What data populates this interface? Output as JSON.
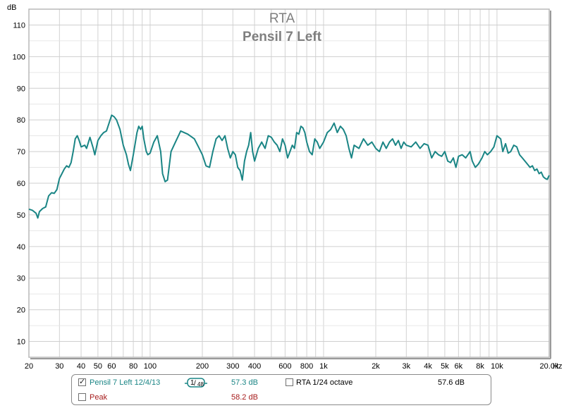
{
  "chart_data": {
    "type": "line",
    "title": "RTA",
    "subtitle": "Pensil 7 Left",
    "ylabel": "dB",
    "xlabel": "",
    "x_unit": "Hz",
    "x_scale": "log",
    "xlim": [
      20,
      20000
    ],
    "ylim": [
      5,
      115
    ],
    "grid": true,
    "y_ticks": [
      10,
      20,
      30,
      40,
      50,
      60,
      70,
      80,
      90,
      100,
      110
    ],
    "x_ticks": [
      {
        "value": 20,
        "label": "20"
      },
      {
        "value": 30,
        "label": "30"
      },
      {
        "value": 40,
        "label": "40"
      },
      {
        "value": 50,
        "label": "50"
      },
      {
        "value": 60,
        "label": "60"
      },
      {
        "value": 80,
        "label": "80"
      },
      {
        "value": 100,
        "label": "100"
      },
      {
        "value": 200,
        "label": "200"
      },
      {
        "value": 300,
        "label": "300"
      },
      {
        "value": 400,
        "label": "400"
      },
      {
        "value": 600,
        "label": "600"
      },
      {
        "value": 800,
        "label": "800"
      },
      {
        "value": 1000,
        "label": "1k"
      },
      {
        "value": 2000,
        "label": "2k"
      },
      {
        "value": 3000,
        "label": "3k"
      },
      {
        "value": 4000,
        "label": "4k"
      },
      {
        "value": 5000,
        "label": "5k"
      },
      {
        "value": 6000,
        "label": "6k"
      },
      {
        "value": 8000,
        "label": "8k"
      },
      {
        "value": 10000,
        "label": "10k"
      },
      {
        "value": 20000,
        "label": "20.0k"
      }
    ],
    "series": [
      {
        "name": "Pensil 7 Left 12/4/13",
        "color": "#1a8585",
        "points": [
          [
            20,
            51.8
          ],
          [
            21,
            51.4
          ],
          [
            22,
            50.5
          ],
          [
            22.5,
            49
          ],
          [
            23,
            51
          ],
          [
            24,
            52
          ],
          [
            25,
            52.5
          ],
          [
            26,
            56
          ],
          [
            27,
            57
          ],
          [
            28,
            56.8
          ],
          [
            29,
            58
          ],
          [
            30,
            61.5
          ],
          [
            31,
            63
          ],
          [
            32,
            64.5
          ],
          [
            33,
            65.5
          ],
          [
            34,
            65
          ],
          [
            35,
            66.5
          ],
          [
            36,
            70
          ],
          [
            37,
            74
          ],
          [
            38,
            75
          ],
          [
            39,
            73.5
          ],
          [
            40,
            71.5
          ],
          [
            42,
            72
          ],
          [
            43,
            71
          ],
          [
            45,
            74.5
          ],
          [
            47,
            71
          ],
          [
            48,
            69
          ],
          [
            50,
            73.5
          ],
          [
            52,
            75
          ],
          [
            54,
            76
          ],
          [
            56,
            76.5
          ],
          [
            58,
            79
          ],
          [
            60,
            81.5
          ],
          [
            62,
            81
          ],
          [
            64,
            80
          ],
          [
            67,
            77
          ],
          [
            70,
            72
          ],
          [
            73,
            69
          ],
          [
            75,
            66
          ],
          [
            77,
            64
          ],
          [
            80,
            69
          ],
          [
            84,
            76
          ],
          [
            86,
            78
          ],
          [
            88,
            77
          ],
          [
            90,
            78
          ],
          [
            92,
            74
          ],
          [
            95,
            70
          ],
          [
            97,
            69
          ],
          [
            100,
            69.5
          ],
          [
            105,
            73
          ],
          [
            110,
            75
          ],
          [
            115,
            70
          ],
          [
            118,
            63
          ],
          [
            122,
            60.5
          ],
          [
            126,
            61
          ],
          [
            132,
            70
          ],
          [
            140,
            73
          ],
          [
            150,
            76.5
          ],
          [
            165,
            75.5
          ],
          [
            180,
            74
          ],
          [
            190,
            71.5
          ],
          [
            200,
            69
          ],
          [
            210,
            65.5
          ],
          [
            220,
            65
          ],
          [
            230,
            70
          ],
          [
            240,
            74
          ],
          [
            250,
            75
          ],
          [
            260,
            73.5
          ],
          [
            270,
            75
          ],
          [
            280,
            71
          ],
          [
            290,
            68
          ],
          [
            300,
            70
          ],
          [
            310,
            69
          ],
          [
            320,
            65
          ],
          [
            330,
            64
          ],
          [
            340,
            61
          ],
          [
            350,
            67
          ],
          [
            360,
            70
          ],
          [
            370,
            72
          ],
          [
            380,
            76
          ],
          [
            390,
            70
          ],
          [
            400,
            67
          ],
          [
            420,
            71
          ],
          [
            440,
            73
          ],
          [
            460,
            71
          ],
          [
            480,
            75
          ],
          [
            500,
            74.5
          ],
          [
            520,
            73
          ],
          [
            540,
            72
          ],
          [
            560,
            70
          ],
          [
            580,
            74
          ],
          [
            600,
            72
          ],
          [
            620,
            68
          ],
          [
            640,
            70
          ],
          [
            660,
            72
          ],
          [
            680,
            71
          ],
          [
            700,
            76
          ],
          [
            720,
            75.5
          ],
          [
            740,
            78
          ],
          [
            760,
            77.5
          ],
          [
            780,
            76
          ],
          [
            800,
            73
          ],
          [
            830,
            70
          ],
          [
            860,
            69
          ],
          [
            890,
            74
          ],
          [
            920,
            73
          ],
          [
            950,
            71
          ],
          [
            1000,
            73
          ],
          [
            1050,
            76
          ],
          [
            1100,
            77
          ],
          [
            1150,
            79
          ],
          [
            1200,
            76
          ],
          [
            1250,
            78
          ],
          [
            1300,
            77
          ],
          [
            1350,
            75
          ],
          [
            1400,
            71
          ],
          [
            1450,
            68
          ],
          [
            1500,
            72
          ],
          [
            1600,
            71
          ],
          [
            1700,
            74
          ],
          [
            1800,
            72
          ],
          [
            1900,
            73
          ],
          [
            2000,
            71
          ],
          [
            2100,
            70
          ],
          [
            2200,
            73
          ],
          [
            2300,
            71
          ],
          [
            2400,
            73
          ],
          [
            2500,
            74
          ],
          [
            2600,
            72
          ],
          [
            2700,
            73.5
          ],
          [
            2800,
            71
          ],
          [
            2900,
            73
          ],
          [
            3000,
            72
          ],
          [
            3200,
            71.5
          ],
          [
            3400,
            73
          ],
          [
            3600,
            71
          ],
          [
            3800,
            72.5
          ],
          [
            4000,
            72
          ],
          [
            4200,
            68
          ],
          [
            4400,
            70
          ],
          [
            4600,
            69
          ],
          [
            4800,
            68.5
          ],
          [
            5000,
            70
          ],
          [
            5200,
            67
          ],
          [
            5400,
            66.5
          ],
          [
            5600,
            68
          ],
          [
            5800,
            65
          ],
          [
            6000,
            68.5
          ],
          [
            6300,
            69
          ],
          [
            6600,
            68
          ],
          [
            7000,
            70
          ],
          [
            7200,
            67
          ],
          [
            7500,
            65
          ],
          [
            7800,
            66
          ],
          [
            8200,
            68
          ],
          [
            8500,
            70
          ],
          [
            8800,
            69
          ],
          [
            9200,
            70
          ],
          [
            9600,
            71.5
          ],
          [
            10000,
            75
          ],
          [
            10500,
            74
          ],
          [
            10800,
            70
          ],
          [
            11200,
            72.5
          ],
          [
            11600,
            69.5
          ],
          [
            12000,
            70
          ],
          [
            12500,
            72
          ],
          [
            13000,
            71.5
          ],
          [
            13500,
            69
          ],
          [
            14000,
            68
          ],
          [
            14500,
            67
          ],
          [
            15000,
            66
          ],
          [
            15500,
            65
          ],
          [
            16000,
            65.5
          ],
          [
            16500,
            64
          ],
          [
            17000,
            64.5
          ],
          [
            17500,
            63
          ],
          [
            18000,
            63.5
          ],
          [
            18500,
            62
          ],
          [
            19000,
            61.5
          ],
          [
            19500,
            61.2
          ],
          [
            20000,
            62.5
          ]
        ]
      }
    ]
  },
  "legend": {
    "series_label": "Pensil 7 Left 12/4/13",
    "series_checked": true,
    "series_value": "57.3 dB",
    "smoothing_num": "1",
    "smoothing_den": "48",
    "peak_label": "Peak",
    "peak_checked": false,
    "peak_value": "58.2 dB",
    "rta_label": "RTA 1/24 octave",
    "rta_checked": false,
    "rta_value": "57.6 dB",
    "series_color": "#1a8585",
    "peak_color": "#a61c1c"
  }
}
